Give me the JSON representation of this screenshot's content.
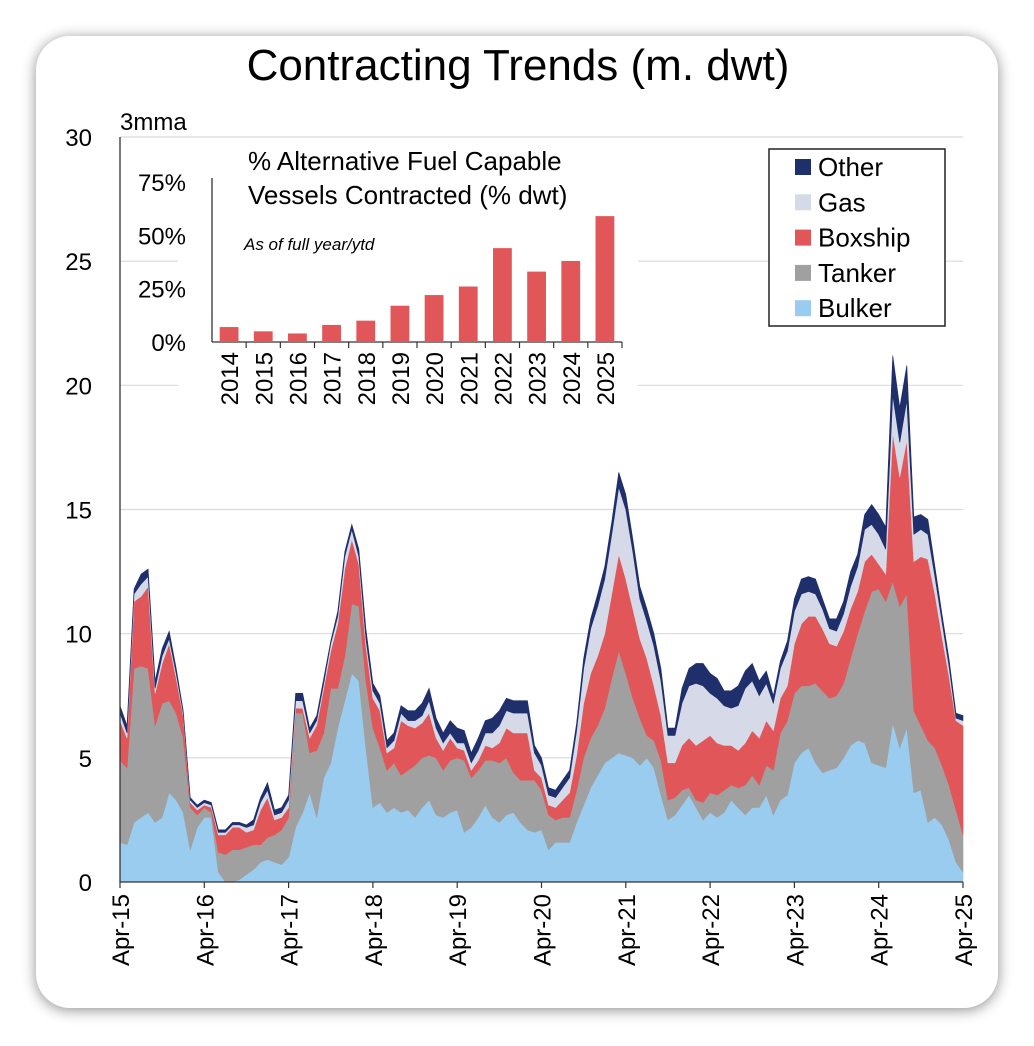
{
  "chart_data": [
    {
      "type": "area",
      "stacked": true,
      "title": "Contracting Trends (m. dwt)",
      "ylabel": "3mma",
      "ylim": [
        0,
        30
      ],
      "yticks": [
        0,
        5,
        10,
        15,
        20,
        25,
        30
      ],
      "grid": true,
      "legend_position": "top-right",
      "x_tick_labels": [
        "Apr-15",
        "Apr-16",
        "Apr-17",
        "Apr-18",
        "Apr-19",
        "Apr-20",
        "Apr-21",
        "Apr-22",
        "Apr-23",
        "Apr-24",
        "Apr-25"
      ],
      "x_start": "Apr-15",
      "x_end": "Apr-25",
      "series": [
        {
          "name": "Bulker",
          "color": "#99ccee",
          "values": [
            1.6,
            1.5,
            2.4,
            2.6,
            2.8,
            2.4,
            2.6,
            3.6,
            3.3,
            2.8,
            1.3,
            2.2,
            2.6,
            2.6,
            0.4,
            0.0,
            0.0,
            0.1,
            0.3,
            0.5,
            0.8,
            0.9,
            0.8,
            0.7,
            1.0,
            2.2,
            2.8,
            3.6,
            2.6,
            4.2,
            4.8,
            6.2,
            7.3,
            8.4,
            8.1,
            5.4,
            3.0,
            3.2,
            2.8,
            3.0,
            2.8,
            2.9,
            2.6,
            3.0,
            3.3,
            2.7,
            2.6,
            2.8,
            2.9,
            2.0,
            2.2,
            2.6,
            3.1,
            2.6,
            2.4,
            2.7,
            2.8,
            2.4,
            2.1,
            2.0,
            2.1,
            1.3,
            1.6,
            1.6,
            1.6,
            2.4,
            3.1,
            3.8,
            4.3,
            4.8,
            5.0,
            5.2,
            5.1,
            5.0,
            4.7,
            5.0,
            4.6,
            3.5,
            2.5,
            2.7,
            3.1,
            3.5,
            3.0,
            2.5,
            2.8,
            2.6,
            2.8,
            3.3,
            3.0,
            2.7,
            3.0,
            3.0,
            3.5,
            2.7,
            3.3,
            3.5,
            4.8,
            5.2,
            5.4,
            4.8,
            4.4,
            4.5,
            4.6,
            5.0,
            5.5,
            5.7,
            5.6,
            4.8,
            4.7,
            4.6,
            6.4,
            5.4,
            6.2,
            3.6,
            3.7,
            2.4,
            2.6,
            2.3,
            1.7,
            0.8,
            0.4
          ]
        },
        {
          "name": "Tanker",
          "color": "#a0a0a0",
          "values": [
            3.3,
            3.1,
            6.2,
            6.1,
            5.8,
            3.9,
            4.6,
            3.7,
            3.5,
            3.0,
            1.7,
            0.5,
            0.4,
            0.2,
            0.8,
            1.1,
            1.3,
            1.2,
            1.1,
            1.0,
            0.7,
            0.9,
            1.1,
            1.4,
            1.6,
            4.6,
            4.0,
            1.6,
            2.7,
            1.8,
            3.0,
            1.6,
            1.8,
            2.8,
            3.0,
            2.7,
            3.2,
            2.2,
            1.7,
            1.8,
            1.5,
            1.6,
            2.1,
            2.0,
            1.8,
            2.3,
            1.9,
            2.1,
            2.1,
            2.9,
            2.0,
            1.9,
            1.8,
            2.3,
            2.4,
            2.3,
            1.6,
            1.7,
            2.0,
            2.1,
            1.6,
            1.4,
            0.9,
            1.0,
            1.0,
            1.3,
            1.9,
            2.0,
            2.0,
            2.2,
            3.2,
            4.1,
            3.3,
            2.4,
            1.9,
            0.9,
            1.1,
            1.4,
            0.8,
            0.7,
            0.6,
            0.3,
            0.3,
            0.7,
            0.8,
            0.9,
            0.9,
            0.6,
            0.8,
            1.2,
            1.3,
            0.9,
            1.2,
            1.8,
            2.7,
            3.0,
            2.8,
            2.7,
            2.5,
            3.2,
            3.3,
            2.9,
            2.9,
            3.0,
            3.5,
            4.3,
            5.3,
            6.9,
            7.1,
            6.7,
            5.7,
            5.7,
            5.4,
            3.3,
            2.6,
            3.3,
            2.8,
            2.4,
            2.2,
            2.1,
            1.5
          ]
        },
        {
          "name": "Boxship",
          "color": "#e15759",
          "values": [
            1.6,
            1.2,
            2.7,
            2.8,
            3.3,
            1.3,
            1.6,
            2.3,
            1.4,
            0.9,
            0.2,
            0.2,
            0.1,
            0.2,
            0.7,
            0.8,
            0.9,
            0.9,
            0.6,
            0.6,
            1.4,
            1.6,
            0.6,
            0.5,
            0.4,
            0.2,
            0.2,
            0.6,
            1.0,
            1.8,
            1.5,
            2.6,
            3.5,
            2.6,
            1.7,
            1.4,
            1.2,
            1.5,
            0.7,
            0.6,
            2.2,
            1.8,
            1.5,
            1.4,
            1.7,
            0.8,
            0.8,
            0.9,
            0.4,
            0.4,
            0.3,
            0.4,
            0.6,
            0.5,
            0.8,
            1.2,
            1.6,
            1.9,
            1.9,
            0.4,
            0.5,
            0.4,
            0.5,
            0.7,
            1.0,
            1.4,
            2.2,
            2.6,
            2.8,
            3.0,
            3.4,
            3.9,
            3.8,
            3.6,
            3.2,
            3.1,
            2.2,
            1.8,
            1.5,
            1.4,
            1.8,
            2.0,
            2.2,
            2.5,
            2.3,
            2.1,
            1.8,
            1.6,
            1.5,
            1.7,
            1.8,
            1.9,
            1.8,
            1.6,
            1.4,
            1.4,
            2.0,
            2.5,
            2.8,
            2.7,
            2.5,
            2.2,
            2.0,
            2.1,
            2.0,
            1.7,
            2.0,
            1.5,
            1.0,
            1.1,
            6.0,
            5.2,
            6.2,
            6.0,
            6.8,
            7.3,
            6.2,
            5.2,
            4.4,
            3.6,
            4.4
          ]
        },
        {
          "name": "Gas",
          "color": "#d5d9e8",
          "values": [
            0.3,
            0.2,
            0.3,
            0.5,
            0.4,
            0.2,
            0.3,
            0.2,
            0.2,
            0.1,
            0.1,
            0.1,
            0.1,
            0.1,
            0.1,
            0.1,
            0.1,
            0.1,
            0.2,
            0.2,
            0.3,
            0.3,
            0.2,
            0.2,
            0.3,
            0.3,
            0.3,
            0.2,
            0.2,
            0.2,
            0.3,
            0.3,
            0.5,
            0.4,
            0.3,
            0.3,
            0.3,
            0.3,
            0.2,
            0.3,
            0.3,
            0.2,
            0.3,
            0.3,
            0.5,
            0.4,
            0.3,
            0.2,
            0.2,
            0.3,
            0.3,
            0.4,
            0.5,
            0.6,
            0.7,
            0.7,
            0.8,
            0.8,
            0.8,
            0.7,
            0.5,
            0.4,
            0.4,
            0.5,
            0.6,
            1.0,
            1.4,
            1.8,
            2.0,
            2.2,
            2.4,
            2.7,
            2.8,
            2.3,
            1.6,
            1.5,
            1.6,
            1.4,
            1.1,
            1.1,
            1.7,
            2.1,
            2.5,
            2.2,
            1.7,
            1.8,
            1.6,
            1.5,
            1.8,
            2.2,
            2.0,
            1.7,
            1.5,
            1.1,
            1.2,
            1.4,
            1.3,
            1.2,
            1.0,
            0.9,
            0.8,
            0.6,
            0.6,
            0.7,
            0.9,
            1.0,
            1.3,
            1.2,
            1.2,
            1.0,
            1.5,
            1.4,
            1.6,
            1.1,
            1.1,
            1.0,
            0.7,
            0.6,
            0.4,
            0.1,
            0.2
          ]
        },
        {
          "name": "Other",
          "color": "#1f2f6b",
          "values": [
            0.3,
            0.3,
            0.2,
            0.4,
            0.3,
            0.3,
            0.3,
            0.3,
            0.2,
            0.1,
            0.1,
            0.1,
            0.1,
            0.1,
            0.1,
            0.1,
            0.1,
            0.1,
            0.1,
            0.2,
            0.2,
            0.3,
            0.2,
            0.2,
            0.2,
            0.3,
            0.3,
            0.2,
            0.2,
            0.2,
            0.1,
            0.2,
            0.2,
            0.2,
            0.3,
            0.4,
            0.3,
            0.3,
            0.3,
            0.3,
            0.3,
            0.4,
            0.4,
            0.5,
            0.5,
            0.4,
            0.4,
            0.5,
            0.6,
            0.5,
            0.4,
            0.5,
            0.5,
            0.6,
            0.6,
            0.5,
            0.5,
            0.5,
            0.5,
            0.3,
            0.3,
            0.3,
            0.3,
            0.3,
            0.3,
            0.3,
            0.4,
            0.4,
            0.5,
            0.5,
            0.5,
            0.6,
            0.6,
            0.5,
            0.5,
            0.5,
            0.5,
            0.5,
            0.3,
            0.3,
            0.6,
            0.7,
            0.8,
            0.9,
            0.8,
            0.8,
            0.6,
            0.7,
            0.8,
            0.7,
            0.7,
            0.6,
            0.5,
            0.3,
            0.3,
            0.4,
            0.5,
            0.6,
            0.6,
            0.6,
            0.4,
            0.4,
            0.5,
            0.5,
            0.6,
            0.5,
            0.6,
            0.8,
            0.8,
            0.9,
            1.6,
            1.4,
            1.4,
            0.7,
            0.6,
            0.6,
            0.4,
            0.3,
            0.3,
            0.2,
            0.2
          ]
        }
      ]
    },
    {
      "type": "bar",
      "title": "% Alternative Fuel Capable Vessels Contracted (% dwt)",
      "subtitle": "As of full year/ytd",
      "categories": [
        "2014",
        "2015",
        "2016",
        "2017",
        "2018",
        "2019",
        "2020",
        "2021",
        "2022",
        "2023",
        "2024",
        "2025"
      ],
      "values": [
        7,
        5,
        4,
        8,
        10,
        17,
        22,
        26,
        44,
        33,
        38,
        59
      ],
      "ylim": [
        0,
        75
      ],
      "yticks": [
        0,
        25,
        50,
        75
      ],
      "ytick_labels": [
        "0%",
        "25%",
        "50%",
        "75%"
      ],
      "color": "#e15759"
    }
  ]
}
